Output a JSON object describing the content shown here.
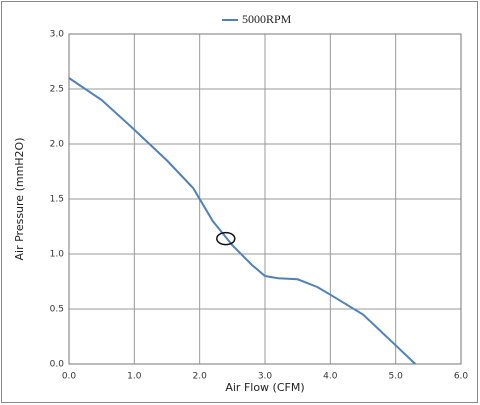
{
  "chart_data": {
    "type": "line",
    "x_label": "Air Flow (CFM)",
    "y_label": "Air Pressure (mmH2O)",
    "x": [
      0,
      0.5,
      1.0,
      1.5,
      1.9,
      2.2,
      2.5,
      2.8,
      3.0,
      3.2,
      3.5,
      3.8,
      4.0,
      4.5,
      5.0,
      5.3
    ],
    "series": [
      {
        "name": "5000RPM",
        "color": "#4f81bd",
        "values": [
          2.6,
          2.4,
          2.13,
          1.85,
          1.6,
          1.3,
          1.08,
          0.9,
          0.8,
          0.78,
          0.77,
          0.7,
          0.63,
          0.45,
          0.17,
          0.0
        ]
      }
    ],
    "marker": {
      "x": 2.4,
      "y": 1.14
    },
    "xlim": [
      0,
      6
    ],
    "ylim": [
      0,
      3
    ],
    "xticks": [
      {
        "value": 0,
        "label": "0.0"
      },
      {
        "value": 1,
        "label": "1.0"
      },
      {
        "value": 2,
        "label": "2.0"
      },
      {
        "value": 3,
        "label": "3.0"
      },
      {
        "value": 4,
        "label": "4.0"
      },
      {
        "value": 5,
        "label": "5.0"
      },
      {
        "value": 6,
        "label": "6.0"
      }
    ],
    "yticks": [
      {
        "value": 0,
        "label": "0.0"
      },
      0.5,
      {
        "value": 1,
        "label": "1.0"
      },
      1.5,
      {
        "value": 2,
        "label": "2.0"
      },
      2.5,
      {
        "value": 3,
        "label": "3.0"
      }
    ],
    "grid": true,
    "legend": "top"
  }
}
